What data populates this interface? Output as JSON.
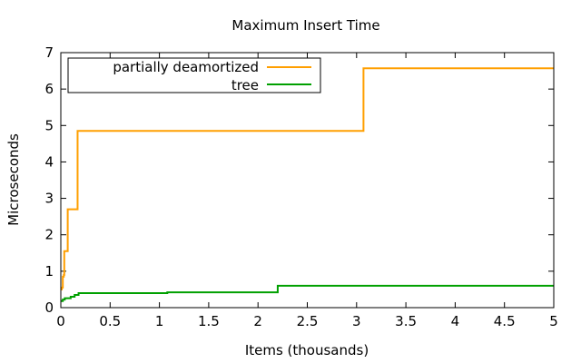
{
  "chart_data": {
    "type": "line",
    "title": "Maximum Insert Time",
    "xlabel": "Items (thousands)",
    "ylabel": "Microseconds",
    "xlim": [
      0,
      5
    ],
    "ylim": [
      0,
      7
    ],
    "xticks": [
      0,
      0.5,
      1,
      1.5,
      2,
      2.5,
      3,
      3.5,
      4,
      4.5,
      5
    ],
    "xtick_labels": [
      "0",
      "0.5",
      "1",
      "1.5",
      "2",
      "2.5",
      "3",
      "3.5",
      "4",
      "4.5",
      "5"
    ],
    "yticks": [
      0,
      1,
      2,
      3,
      4,
      5,
      6,
      7
    ],
    "ytick_labels": [
      "0",
      "1",
      "2",
      "3",
      "4",
      "5",
      "6",
      "7"
    ],
    "grid": false,
    "legend_position": "top-left",
    "step": true,
    "series": [
      {
        "name": "partially deamortized",
        "color": "#ff9f00",
        "points": [
          [
            0,
            0.5
          ],
          [
            0.01,
            0.55
          ],
          [
            0.02,
            0.85
          ],
          [
            0.03,
            0.9
          ],
          [
            0.035,
            1.55
          ],
          [
            0.07,
            1.55
          ],
          [
            0.07,
            2.7
          ],
          [
            0.16,
            2.7
          ],
          [
            0.17,
            4.85
          ],
          [
            3.07,
            4.85
          ],
          [
            3.07,
            6.57
          ],
          [
            5,
            6.57
          ]
        ]
      },
      {
        "name": "tree",
        "color": "#00a000",
        "points": [
          [
            0,
            0.18
          ],
          [
            0.02,
            0.22
          ],
          [
            0.04,
            0.26
          ],
          [
            0.1,
            0.3
          ],
          [
            0.14,
            0.35
          ],
          [
            0.18,
            0.4
          ],
          [
            1.05,
            0.4
          ],
          [
            1.08,
            0.42
          ],
          [
            2.19,
            0.42
          ],
          [
            2.2,
            0.6
          ],
          [
            5,
            0.6
          ]
        ]
      }
    ]
  }
}
